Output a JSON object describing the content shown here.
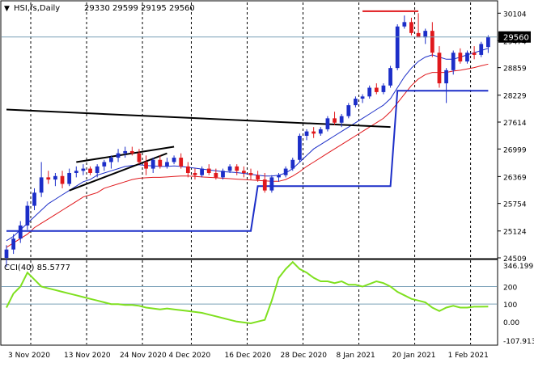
{
  "header": {
    "collapse_glyph": "▼",
    "symbol": "HSI,fs,Daily",
    "ohlc": "29330 29599 29195 29560"
  },
  "indicator": {
    "label": "CCI(40) 85.5777"
  },
  "price_badge": "29560",
  "colors": {
    "frame": "#000000",
    "grid": "#000000",
    "bull_candle": "#1c2ec8",
    "bear_candle": "#e0181c",
    "upper_ma": "#000000",
    "mid_ma": "#1c2ec8",
    "lower_ma": "#e0181c",
    "trailing_stop": "#1c2ec8",
    "cci_line": "#7fe01f",
    "cci_level": "#7aa0b8",
    "badge_bg": "#000000",
    "badge_text": "#ffffff",
    "price_line": "#7aa0b8"
  },
  "chart_data": [
    {
      "type": "candlestick",
      "title": "HSI,fs,Daily",
      "y_ticks": [
        "30104",
        "29474",
        "28859",
        "28229",
        "27614",
        "26999",
        "26369",
        "25754",
        "25124",
        "24509"
      ],
      "x_ticks": [
        "3 Nov 2020",
        "13 Nov 2020",
        "24 Nov 2020",
        "4 Dec 2020",
        "16 Dec 2020",
        "28 Dec 2020",
        "8 Jan 2021",
        "20 Jan 2021",
        "1 Feb 2021"
      ],
      "ylim": [
        24509,
        30350
      ],
      "grid": "dashed vertical",
      "last_close": 29560,
      "candles": [
        [
          24509,
          24800,
          24300,
          24700
        ],
        [
          24700,
          25050,
          24600,
          24950
        ],
        [
          24950,
          25350,
          24850,
          25250
        ],
        [
          25250,
          25800,
          25150,
          25700
        ],
        [
          25700,
          26100,
          25600,
          26000
        ],
        [
          26000,
          26700,
          25900,
          26350
        ],
        [
          26350,
          26500,
          26200,
          26300
        ],
        [
          26300,
          26450,
          26150,
          26380
        ],
        [
          26380,
          26500,
          26100,
          26200
        ],
        [
          26200,
          26550,
          26150,
          26450
        ],
        [
          26450,
          26600,
          26350,
          26500
        ],
        [
          26500,
          26650,
          26400,
          26550
        ],
        [
          26550,
          26600,
          26400,
          26450
        ],
        [
          26450,
          26650,
          26350,
          26600
        ],
        [
          26600,
          26750,
          26500,
          26700
        ],
        [
          26700,
          26850,
          26550,
          26800
        ],
        [
          26800,
          27000,
          26700,
          26900
        ],
        [
          26900,
          27050,
          26800,
          26950
        ],
        [
          26950,
          27050,
          26850,
          26900
        ],
        [
          26900,
          27000,
          26650,
          26700
        ],
        [
          26700,
          26850,
          26400,
          26550
        ],
        [
          26550,
          26800,
          26450,
          26750
        ],
        [
          26750,
          26850,
          26550,
          26600
        ],
        [
          26600,
          26800,
          26550,
          26700
        ],
        [
          26700,
          26850,
          26650,
          26800
        ],
        [
          26800,
          26900,
          26550,
          26600
        ],
        [
          26600,
          26700,
          26350,
          26450
        ],
        [
          26450,
          26550,
          26300,
          26400
        ],
        [
          26400,
          26600,
          26350,
          26550
        ],
        [
          26550,
          26650,
          26400,
          26450
        ],
        [
          26450,
          26550,
          26300,
          26350
        ],
        [
          26350,
          26550,
          26300,
          26500
        ],
        [
          26500,
          26650,
          26450,
          26600
        ],
        [
          26600,
          26650,
          26400,
          26500
        ],
        [
          26500,
          26600,
          26350,
          26450
        ],
        [
          26450,
          26550,
          26300,
          26400
        ],
        [
          26400,
          26500,
          26250,
          26300
        ],
        [
          26300,
          26450,
          26000,
          26050
        ],
        [
          26050,
          26400,
          26000,
          26350
        ],
        [
          26350,
          26450,
          26250,
          26400
        ],
        [
          26400,
          26600,
          26350,
          26550
        ],
        [
          26550,
          26800,
          26500,
          26750
        ],
        [
          26750,
          27350,
          26700,
          27300
        ],
        [
          27300,
          27450,
          27200,
          27400
        ],
        [
          27400,
          27500,
          27250,
          27350
        ],
        [
          27350,
          27500,
          27300,
          27450
        ],
        [
          27450,
          27750,
          27400,
          27700
        ],
        [
          27700,
          27850,
          27550,
          27600
        ],
        [
          27600,
          27800,
          27500,
          27750
        ],
        [
          27750,
          28050,
          27700,
          28000
        ],
        [
          28000,
          28200,
          27950,
          28150
        ],
        [
          28150,
          28250,
          28050,
          28200
        ],
        [
          28200,
          28450,
          28150,
          28400
        ],
        [
          28400,
          28500,
          28250,
          28300
        ],
        [
          28300,
          28500,
          28250,
          28450
        ],
        [
          28450,
          28900,
          28400,
          28850
        ],
        [
          28850,
          29850,
          28800,
          29800
        ],
        [
          29800,
          30050,
          29750,
          29900
        ],
        [
          29900,
          30000,
          29600,
          29650
        ],
        [
          29650,
          30104,
          29600,
          29550
        ],
        [
          29550,
          29750,
          29400,
          29700
        ],
        [
          29700,
          29900,
          29100,
          29200
        ],
        [
          29200,
          29350,
          28400,
          28500
        ],
        [
          28500,
          28850,
          28050,
          28800
        ],
        [
          28800,
          29250,
          28700,
          29200
        ],
        [
          29200,
          29300,
          28950,
          29000
        ],
        [
          29000,
          29250,
          28950,
          29200
        ],
        [
          29200,
          29350,
          29050,
          29150
        ],
        [
          29150,
          29450,
          29100,
          29400
        ],
        [
          29330,
          29599,
          29195,
          29560
        ]
      ],
      "series": [
        {
          "values": [
            24900,
            25000,
            25150,
            25300,
            25450,
            25600,
            25750,
            25850,
            25950,
            26050,
            26150,
            26250,
            26300,
            26400,
            26450,
            26500,
            26550,
            26600,
            26620,
            26640,
            26620,
            26610,
            26600,
            26600,
            26610,
            26600,
            26580,
            26560,
            26540,
            26520,
            26500,
            26480,
            26470,
            26460,
            26440,
            26420,
            26400,
            26380,
            26380,
            26400,
            26450,
            26550,
            26700,
            26850,
            27000,
            27100,
            27200,
            27300,
            27400,
            27500,
            27600,
            27700,
            27800,
            27900,
            28000,
            28150,
            28400,
            28650,
            28850,
            29000,
            29100,
            29150,
            29100,
            29050,
            29050,
            29100,
            29150,
            29200,
            29250,
            29300
          ]
        },
        {
          "values": [
            24750,
            24850,
            24950,
            25050,
            25200,
            25300,
            25400,
            25500,
            25600,
            25700,
            25800,
            25900,
            25950,
            26000,
            26100,
            26150,
            26200,
            26250,
            26300,
            26330,
            26340,
            26350,
            26350,
            26360,
            26370,
            26380,
            26380,
            26370,
            26360,
            26350,
            26340,
            26330,
            26320,
            26310,
            26300,
            26290,
            26280,
            26270,
            26260,
            26260,
            26300,
            26380,
            26480,
            26600,
            26700,
            26800,
            26900,
            27000,
            27100,
            27200,
            27300,
            27400,
            27500,
            27600,
            27700,
            27850,
            28050,
            28250,
            28450,
            28600,
            28700,
            28750,
            28750,
            28750,
            28780,
            28800,
            28830,
            28860,
            28900,
            28940
          ]
        },
        {
          "values": [
            25124,
            25124,
            25124,
            25124,
            25124,
            25124,
            25124,
            25124,
            25124,
            25124,
            25124,
            25124,
            25124,
            25124,
            25124,
            25124,
            25124,
            25124,
            25124,
            25124,
            25124,
            25124,
            25124,
            25124,
            25124,
            25124,
            25124,
            25124,
            25124,
            25124,
            25124,
            25124,
            25124,
            25124,
            25124,
            25124,
            26150,
            26150,
            26150,
            26150,
            26150,
            26150,
            26150,
            26150,
            26150,
            26150,
            26150,
            26150,
            26150,
            26150,
            26150,
            26150,
            26150,
            26150,
            26150,
            26150,
            28330,
            28330,
            28330,
            28330,
            28330,
            28330,
            28330,
            28330,
            28330,
            28330,
            28330,
            28330,
            28330,
            28330
          ]
        }
      ],
      "annotations": [
        {
          "values": [
            27900,
            27500
          ]
        },
        {
          "values": [
            26700,
            27050
          ]
        },
        {
          "values": [
            26050,
            26900
          ]
        },
        {
          "values": [
            30150
          ]
        }
      ]
    },
    {
      "type": "line",
      "title": "CCI(40) 85.5777",
      "y_ticks": [
        "346.1991",
        "200",
        "100",
        "0.00",
        "-107.9138"
      ],
      "ylim": [
        -130,
        350
      ],
      "levels": [
        200,
        100
      ],
      "values": [
        80,
        160,
        200,
        280,
        240,
        200,
        190,
        180,
        170,
        160,
        150,
        140,
        130,
        120,
        110,
        100,
        100,
        95,
        95,
        90,
        80,
        75,
        70,
        75,
        70,
        65,
        60,
        55,
        50,
        40,
        30,
        20,
        10,
        0,
        -5,
        -10,
        0,
        10,
        120,
        250,
        300,
        340,
        300,
        280,
        250,
        230,
        230,
        220,
        230,
        210,
        210,
        200,
        215,
        230,
        220,
        200,
        170,
        150,
        130,
        120,
        110,
        80,
        60,
        80,
        90,
        80,
        80,
        85,
        85,
        85.5777
      ]
    }
  ]
}
